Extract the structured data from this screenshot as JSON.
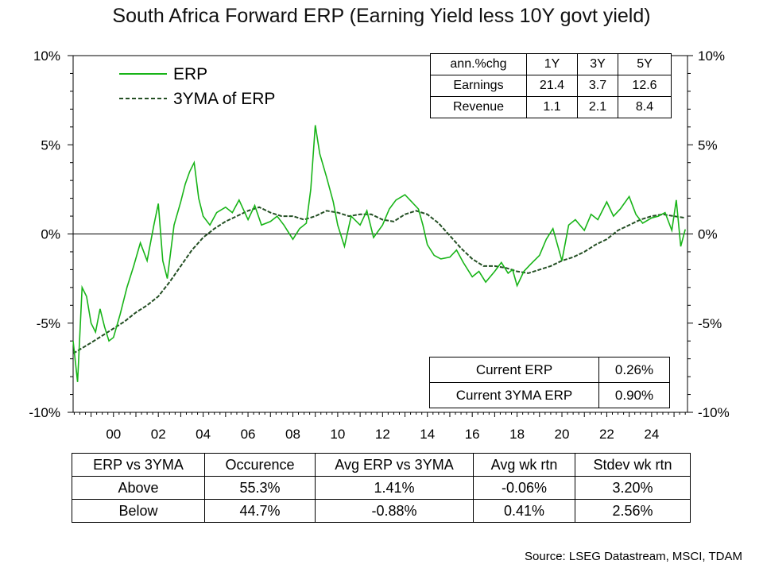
{
  "title": "South Africa Forward ERP (Earning Yield less 10Y govt yield)",
  "source": "Source: LSEG Datastream, MSCI, TDAM",
  "colors": {
    "erp": "#18b418",
    "ma": "#244f24",
    "axis": "#000000"
  },
  "growth_table": {
    "header": [
      "ann.%chg",
      "1Y",
      "3Y",
      "5Y"
    ],
    "rows": [
      [
        "Earnings",
        "21.4",
        "3.7",
        "12.6"
      ],
      [
        "Revenue",
        "1.1",
        "2.1",
        "8.4"
      ]
    ]
  },
  "current_table": {
    "rows": [
      [
        "Current ERP",
        "0.26%"
      ],
      [
        "Current 3YMA ERP",
        "0.90%"
      ]
    ]
  },
  "regime_table": {
    "header": [
      "ERP vs 3YMA",
      "Occurence",
      "Avg ERP vs 3YMA",
      "Avg wk rtn",
      "Stdev wk rtn"
    ],
    "rows": [
      [
        "Above",
        "55.3%",
        "1.41%",
        "-0.06%",
        "3.20%"
      ],
      [
        "Below",
        "44.7%",
        "-0.88%",
        "0.41%",
        "2.56%"
      ]
    ]
  },
  "chart_data": {
    "type": "line",
    "x_range": [
      1998.2,
      2025.6
    ],
    "ylim": [
      -10,
      10
    ],
    "y_ticks": [
      10,
      5,
      0,
      -5,
      -10
    ],
    "y_tick_labels": [
      "10%",
      "5%",
      "0%",
      "-5%",
      "-10%"
    ],
    "x_ticks": [
      2000,
      2002,
      2004,
      2006,
      2008,
      2010,
      2012,
      2014,
      2016,
      2018,
      2020,
      2022,
      2024
    ],
    "x_tick_labels": [
      "00",
      "02",
      "04",
      "06",
      "08",
      "10",
      "12",
      "14",
      "16",
      "18",
      "20",
      "22",
      "24"
    ],
    "legend_position": "top-left",
    "series": [
      {
        "name": "ERP",
        "x": [
          1998.2,
          1998.4,
          1998.6,
          1998.8,
          1999.0,
          1999.2,
          1999.4,
          1999.6,
          1999.8,
          2000.0,
          2000.3,
          2000.6,
          2000.9,
          2001.2,
          2001.5,
          2001.8,
          2002.0,
          2002.2,
          2002.4,
          2002.7,
          2003.0,
          2003.2,
          2003.4,
          2003.6,
          2003.8,
          2004.0,
          2004.3,
          2004.6,
          2005.0,
          2005.3,
          2005.6,
          2006.0,
          2006.3,
          2006.6,
          2007.0,
          2007.3,
          2007.6,
          2008.0,
          2008.3,
          2008.6,
          2008.8,
          2009.0,
          2009.2,
          2009.5,
          2009.8,
          2010.0,
          2010.3,
          2010.6,
          2011.0,
          2011.3,
          2011.6,
          2012.0,
          2012.3,
          2012.6,
          2013.0,
          2013.3,
          2013.6,
          2013.8,
          2014.0,
          2014.3,
          2014.6,
          2015.0,
          2015.3,
          2015.6,
          2016.0,
          2016.3,
          2016.6,
          2017.0,
          2017.3,
          2017.6,
          2017.8,
          2018.0,
          2018.3,
          2018.6,
          2019.0,
          2019.3,
          2019.6,
          2020.0,
          2020.3,
          2020.6,
          2021.0,
          2021.3,
          2021.6,
          2022.0,
          2022.3,
          2022.6,
          2023.0,
          2023.3,
          2023.6,
          2024.0,
          2024.3,
          2024.6,
          2024.9,
          2025.1,
          2025.3,
          2025.5
        ],
        "y": [
          -6.0,
          -8.3,
          -3.0,
          -3.5,
          -5.0,
          -5.5,
          -4.2,
          -5.2,
          -6.0,
          -5.8,
          -4.5,
          -3.0,
          -1.8,
          -0.5,
          -1.5,
          0.5,
          1.7,
          -1.5,
          -2.5,
          0.5,
          1.8,
          2.8,
          3.5,
          4.0,
          2.0,
          1.0,
          0.5,
          1.2,
          1.5,
          1.2,
          1.9,
          0.8,
          1.6,
          0.5,
          0.7,
          1.0,
          0.5,
          -0.3,
          0.3,
          0.6,
          2.5,
          6.1,
          4.5,
          3.2,
          1.8,
          0.5,
          -0.7,
          1.0,
          0.5,
          1.3,
          -0.2,
          0.5,
          1.4,
          1.9,
          2.2,
          1.8,
          1.4,
          0.5,
          -0.6,
          -1.2,
          -1.4,
          -1.3,
          -0.9,
          -1.6,
          -2.4,
          -2.1,
          -2.7,
          -2.1,
          -1.6,
          -2.2,
          -2.0,
          -2.9,
          -2.1,
          -1.7,
          -1.2,
          -0.3,
          0.3,
          -1.5,
          0.5,
          0.8,
          0.2,
          1.1,
          0.8,
          1.8,
          1.0,
          1.4,
          2.1,
          1.1,
          0.6,
          0.9,
          1.0,
          1.2,
          0.2,
          1.9,
          -0.7,
          0.26
        ]
      },
      {
        "name": "3YMA of ERP",
        "x": [
          1998.2,
          1998.6,
          1999.0,
          1999.5,
          2000.0,
          2000.5,
          2001.0,
          2001.5,
          2002.0,
          2002.5,
          2003.0,
          2003.5,
          2004.0,
          2004.5,
          2005.0,
          2005.5,
          2006.0,
          2006.5,
          2007.0,
          2007.5,
          2008.0,
          2008.5,
          2009.0,
          2009.5,
          2010.0,
          2010.5,
          2011.0,
          2011.5,
          2012.0,
          2012.5,
          2013.0,
          2013.5,
          2014.0,
          2014.5,
          2015.0,
          2015.5,
          2016.0,
          2016.5,
          2017.0,
          2017.5,
          2018.0,
          2018.5,
          2019.0,
          2019.5,
          2020.0,
          2020.5,
          2021.0,
          2021.5,
          2022.0,
          2022.5,
          2023.0,
          2023.5,
          2024.0,
          2024.5,
          2025.0,
          2025.5
        ],
        "y": [
          -6.7,
          -6.4,
          -6.1,
          -5.7,
          -5.3,
          -4.9,
          -4.4,
          -4.0,
          -3.5,
          -2.7,
          -1.8,
          -0.9,
          -0.2,
          0.3,
          0.7,
          1.0,
          1.3,
          1.5,
          1.2,
          1.0,
          1.0,
          0.8,
          1.0,
          1.3,
          1.2,
          1.0,
          1.1,
          1.1,
          0.8,
          0.7,
          1.1,
          1.3,
          1.1,
          0.6,
          -0.1,
          -0.8,
          -1.4,
          -1.8,
          -1.8,
          -1.9,
          -2.1,
          -2.2,
          -2.0,
          -1.8,
          -1.5,
          -1.3,
          -1.0,
          -0.6,
          -0.3,
          0.2,
          0.5,
          0.8,
          1.0,
          1.1,
          1.0,
          0.9
        ]
      }
    ]
  }
}
